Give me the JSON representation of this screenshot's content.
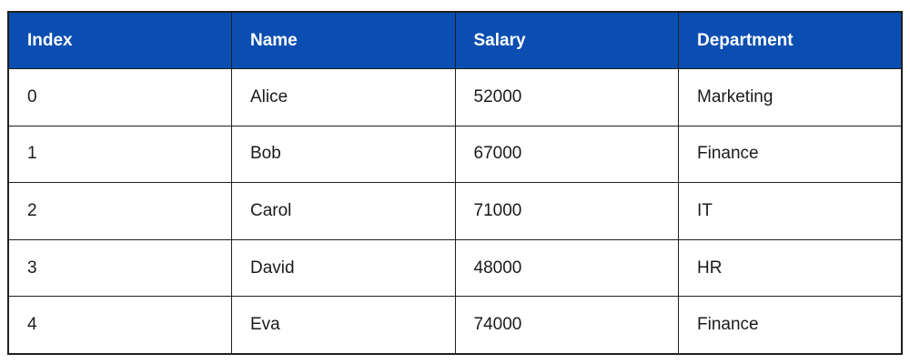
{
  "table": {
    "columns": [
      "Index",
      "Name",
      "Salary",
      "Department"
    ],
    "rows": [
      {
        "cells": [
          "0",
          "Alice",
          "52000",
          "Marketing"
        ]
      },
      {
        "cells": [
          "1",
          "Bob",
          "67000",
          "Finance"
        ]
      },
      {
        "cells": [
          "2",
          "Carol",
          "71000",
          "IT"
        ]
      },
      {
        "cells": [
          "3",
          "David",
          "48000",
          "HR"
        ]
      },
      {
        "cells": [
          "4",
          "Eva",
          "74000",
          "Finance"
        ]
      }
    ]
  },
  "colors": {
    "header_bg": "#0b4eb2",
    "header_text": "#ffffff",
    "border": "#1f1f1f",
    "cell_text": "#1a1a1a",
    "row_bg": "#ffffff"
  },
  "chart_data": {
    "type": "table",
    "title": "",
    "columns": [
      "Index",
      "Name",
      "Salary",
      "Department"
    ],
    "rows": [
      [
        "0",
        "Alice",
        "52000",
        "Marketing"
      ],
      [
        "1",
        "Bob",
        "67000",
        "Finance"
      ],
      [
        "2",
        "Carol",
        "71000",
        "IT"
      ],
      [
        "3",
        "David",
        "48000",
        "HR"
      ],
      [
        "4",
        "Eva",
        "74000",
        "Finance"
      ]
    ],
    "salary_values": [
      52000,
      67000,
      71000,
      48000,
      74000
    ],
    "layout_hints": {
      "header_style": "solid blue background, white bold text",
      "grid": "all cell borders visible",
      "column_count": 4,
      "row_count": 5
    }
  }
}
